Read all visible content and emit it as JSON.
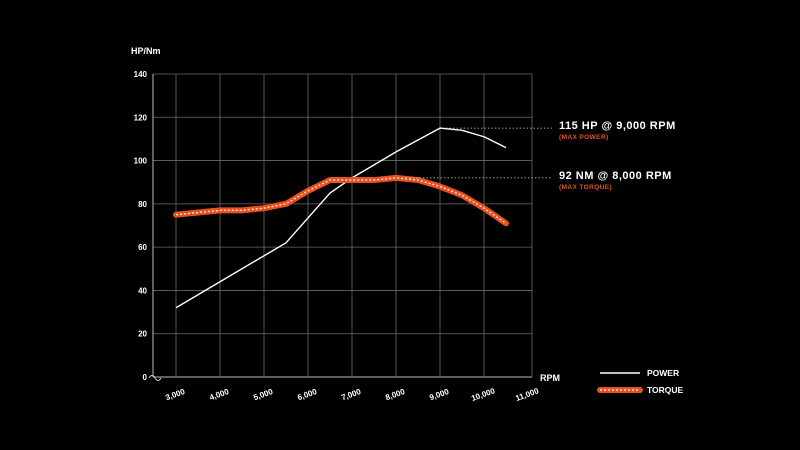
{
  "chart_data": {
    "type": "line",
    "ylabel": "HP/Nm",
    "xlabel": "RPM",
    "ylim": [
      0,
      140
    ],
    "y_ticks": [
      0,
      20,
      40,
      60,
      80,
      100,
      120,
      140
    ],
    "x_ticks": [
      3000,
      4000,
      5000,
      6000,
      7000,
      8000,
      9000,
      10000,
      11000
    ],
    "x_tick_labels": [
      "3,000",
      "4,000",
      "5,000",
      "6,000",
      "7,000",
      "8,000",
      "9,000",
      "10,000",
      "11,000"
    ],
    "grid": true,
    "legend_position": "bottom-right",
    "series": [
      {
        "name": "POWER",
        "color": "#ffffff",
        "style": "solid",
        "points": [
          [
            3000,
            32
          ],
          [
            4000,
            44
          ],
          [
            5000,
            56
          ],
          [
            5500,
            62
          ],
          [
            6500,
            85
          ],
          [
            7000,
            92
          ],
          [
            8000,
            104
          ],
          [
            9000,
            115
          ],
          [
            9500,
            114
          ],
          [
            10000,
            111
          ],
          [
            10500,
            106
          ]
        ]
      },
      {
        "name": "TORQUE",
        "color": "#e8501f",
        "style": "dashed-band",
        "points": [
          [
            3000,
            75
          ],
          [
            3500,
            76
          ],
          [
            4000,
            77
          ],
          [
            4500,
            77
          ],
          [
            5000,
            78
          ],
          [
            5500,
            80
          ],
          [
            6000,
            86
          ],
          [
            6500,
            91
          ],
          [
            7000,
            91
          ],
          [
            7500,
            91
          ],
          [
            8000,
            92
          ],
          [
            8500,
            91
          ],
          [
            9000,
            88
          ],
          [
            9500,
            84
          ],
          [
            10000,
            78
          ],
          [
            10500,
            71
          ]
        ]
      }
    ],
    "annotations": [
      {
        "series": 0,
        "x": 9000,
        "y": 115,
        "text": "115 HP @ 9,000 RPM",
        "subtext": "(MAX POWER)"
      },
      {
        "series": 1,
        "x": 8000,
        "y": 92,
        "text": "92 NM @ 8,000 RPM",
        "subtext": "(MAX TORQUE)"
      }
    ]
  }
}
